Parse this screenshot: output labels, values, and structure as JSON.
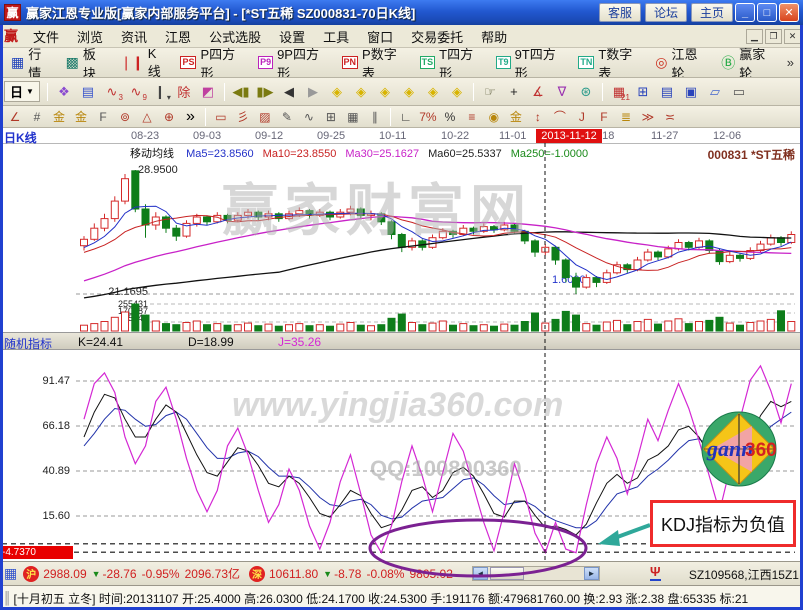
{
  "window": {
    "title": "赢家江恩专业版[赢家内部服务平台] - [*ST五稀  SZ000831-70日K线]",
    "logo_glyph": "赢",
    "buttons": [
      "客服",
      "论坛",
      "主页"
    ],
    "controls": {
      "min": "_",
      "max": "□",
      "close": "✕"
    }
  },
  "menu": {
    "logo_glyph": "赢",
    "items": [
      "文件",
      "浏览",
      "资讯",
      "江恩",
      "公式选股",
      "设置",
      "工具",
      "窗口",
      "交易委托",
      "帮助"
    ],
    "controls": [
      "▁",
      "❐",
      "✕"
    ]
  },
  "toolbar_main": {
    "items": [
      {
        "name": "quotes",
        "label": "行情",
        "glyph": "▦",
        "color": "#2244bb"
      },
      {
        "name": "sectors",
        "label": "板块",
        "glyph": "▩",
        "color": "#1a7a6a"
      },
      {
        "name": "kline",
        "label": "K线",
        "glyph": "❘❙",
        "color": "#cc2222"
      },
      {
        "name": "p-square",
        "label": "P四方形",
        "badge": "PS",
        "color": "#cc2222"
      },
      {
        "name": "9p-square",
        "label": "9P四方形",
        "badge": "P9",
        "color": "#bb22bb"
      },
      {
        "name": "p-table",
        "label": "P数字表",
        "badge": "PN",
        "color": "#cc2222"
      },
      {
        "name": "t-square",
        "label": "T四方形",
        "badge": "TS",
        "color": "#22aa66"
      },
      {
        "name": "9t-square",
        "label": "9T四方形",
        "badge": "T9",
        "color": "#22aa88"
      },
      {
        "name": "t-table",
        "label": "T数字表",
        "badge": "TN",
        "color": "#22aa88"
      },
      {
        "name": "gann-wheel",
        "label": "江恩轮",
        "glyph": "◎",
        "color": "#cc3322"
      },
      {
        "name": "winner-wheel",
        "label": "赢家轮",
        "glyph": "Ⓑ",
        "color": "#22aa44"
      }
    ],
    "overflow": "»"
  },
  "toolbar_tools": {
    "period_label": "日",
    "period_arrow": "▼",
    "icons": [
      {
        "name": "multi-view-icon",
        "glyph": "❖",
        "color": "#8a4ad0"
      },
      {
        "name": "info-list-icon",
        "glyph": "▤",
        "color": "#3a55cc"
      },
      {
        "name": "wave3-icon",
        "glyph": "∿",
        "sub": "3",
        "color": "#c03030"
      },
      {
        "name": "wave9-icon",
        "glyph": "∿",
        "sub": "9",
        "color": "#c03030"
      },
      {
        "name": "candle-style-icon",
        "glyph": "❙",
        "sub": "▾",
        "color": "#444444"
      },
      {
        "name": "exrights-icon",
        "glyph": "除",
        "color": "#c03030"
      },
      {
        "name": "color-style-icon",
        "glyph": "◩",
        "color": "#c040a0"
      },
      {
        "sep": true
      },
      {
        "name": "first-page-icon",
        "glyph": "◀▮",
        "color": "#7a7a10"
      },
      {
        "name": "last-page-icon",
        "glyph": "▮▶",
        "color": "#7a7a10"
      },
      {
        "name": "prev-page-icon",
        "glyph": "◀",
        "color": "#333333"
      },
      {
        "name": "next-page-icon",
        "glyph": "▶",
        "color": "#999999"
      },
      {
        "name": "zoom-left-icon",
        "glyph": "◈",
        "color": "#d8b400"
      },
      {
        "name": "zoom-right-icon",
        "glyph": "◈",
        "color": "#d8b400"
      },
      {
        "name": "zoom-h-icon",
        "glyph": "◈",
        "color": "#d8b400"
      },
      {
        "name": "zoom-star-icon",
        "glyph": "◈",
        "color": "#d8b400"
      },
      {
        "name": "zoom-in-icon",
        "glyph": "◈",
        "color": "#d8b400"
      },
      {
        "name": "zoom-out-icon",
        "glyph": "◈",
        "color": "#d8b400"
      },
      {
        "sep": true
      },
      {
        "name": "hand-tool-icon",
        "glyph": "☞",
        "color": "#555533"
      },
      {
        "name": "crosshair-icon",
        "glyph": "+",
        "color": "#222222"
      },
      {
        "name": "angle-tool-icon",
        "glyph": "∡",
        "color": "#c03030"
      },
      {
        "name": "gann-fan-icon",
        "glyph": "∇",
        "color": "#9a30b0"
      },
      {
        "name": "pattern-icon",
        "glyph": "⊛",
        "color": "#2a9a8a"
      },
      {
        "sep": true
      },
      {
        "name": "calendar-icon",
        "glyph": "▦",
        "sub": "21",
        "color": "#c03030"
      },
      {
        "name": "calculator-icon",
        "glyph": "⊞",
        "color": "#2a44bb"
      },
      {
        "name": "notes-icon",
        "glyph": "▤",
        "color": "#2a44bb"
      },
      {
        "name": "save-icon",
        "glyph": "▣",
        "color": "#2a44bb"
      },
      {
        "name": "capture-icon",
        "glyph": "▱",
        "color": "#4466cc"
      },
      {
        "name": "print-icon",
        "glyph": "▭",
        "color": "#555555"
      }
    ]
  },
  "toolbar_draw": {
    "overflow": "»",
    "groups": [
      [
        {
          "name": "pitchfork-icon",
          "glyph": "∠",
          "color": "#b03828"
        },
        {
          "name": "ruler-grid-icon",
          "glyph": "#",
          "color": "#555555"
        },
        {
          "name": "gold-section-icon",
          "glyph": "金",
          "color": "#b8860b"
        },
        {
          "name": "gold-channel-icon",
          "glyph": "金",
          "color": "#b8860b"
        },
        {
          "name": "fibonacci-icon",
          "glyph": "F",
          "color": "#555555"
        },
        {
          "name": "spiral-icon",
          "glyph": "⊚",
          "color": "#b03828"
        },
        {
          "name": "gann-box-icon",
          "glyph": "△",
          "color": "#b03828"
        },
        {
          "name": "gann-circle-icon",
          "glyph": "⊕",
          "color": "#b03828"
        }
      ],
      [
        {
          "name": "rect-draw-icon",
          "glyph": "▭",
          "color": "#b03828"
        },
        {
          "name": "ray-lines-icon",
          "glyph": "彡",
          "color": "#b03828"
        },
        {
          "name": "shaded-box-icon",
          "glyph": "▨",
          "color": "#b03828"
        },
        {
          "name": "pencil-icon",
          "glyph": "✎",
          "color": "#555555"
        },
        {
          "name": "zigzag-line-icon",
          "glyph": "∿",
          "color": "#555555"
        },
        {
          "name": "grid-fine-icon",
          "glyph": "⊞",
          "color": "#555555"
        },
        {
          "name": "grid-coarse-icon",
          "glyph": "▦",
          "color": "#555555"
        },
        {
          "name": "hatch-lines-icon",
          "glyph": "∥",
          "color": "#555555"
        }
      ],
      [
        {
          "name": "measure-angle-icon",
          "glyph": "∟",
          "color": "#333333"
        },
        {
          "name": "percent7-icon",
          "glyph": "7%",
          "color": "#b03828"
        },
        {
          "name": "percent-icon",
          "glyph": "%",
          "color": "#333333"
        },
        {
          "name": "percent-lines-icon",
          "glyph": "≡",
          "color": "#b03828"
        },
        {
          "name": "gold-circle-icon",
          "glyph": "◉",
          "color": "#b8860b"
        },
        {
          "name": "gold-line-icon",
          "glyph": "金",
          "color": "#b8860b"
        },
        {
          "name": "updown-arrow-icon",
          "glyph": "↕",
          "color": "#b03828"
        },
        {
          "name": "arc-tool-icon",
          "glyph": "⌒",
          "color": "#b03828"
        },
        {
          "name": "j-angle-icon",
          "glyph": "J",
          "color": "#b03828"
        },
        {
          "name": "f-angle-icon",
          "glyph": "F",
          "color": "#b03828"
        },
        {
          "name": "gold-grid-icon",
          "glyph": "≣",
          "color": "#b8860b"
        },
        {
          "name": "advance-icon",
          "glyph": "≫",
          "color": "#b03828"
        },
        {
          "name": "band-tool-icon",
          "glyph": "≍",
          "color": "#b03828"
        }
      ]
    ]
  },
  "chart": {
    "panel_label": "日K线",
    "dates": [
      "08-23",
      "09-03",
      "09-12",
      "09-25",
      "10-11",
      "10-22",
      "11-01",
      "11-18",
      "11-27",
      "12-06"
    ],
    "highlight_date": "2013-11-12",
    "ma_title": "移动均线",
    "ma_items": [
      {
        "label": "Ma5=23.8560",
        "color": "#2230c8"
      },
      {
        "label": "Ma10=23.8550",
        "color": "#c82222"
      },
      {
        "label": "Ma30=25.1627",
        "color": "#c822c8"
      },
      {
        "label": "Ma60=25.5337",
        "color": "#222222"
      },
      {
        "label": "Ma250=-1.0000",
        "color": "#1a8a1a"
      }
    ],
    "stock_label": "000831 *ST五稀",
    "price_high_label": "28.9500",
    "price_low_label": "21.1695",
    "volume_labels": [
      "255431",
      "170287",
      "85144"
    ],
    "price_tag": "1.6000",
    "watermark": {
      "line1": "赢家财富网",
      "line2": "www.yingjia360.com",
      "line3": "QQ:100800360"
    },
    "logo": {
      "word": "gann",
      "num": "360"
    }
  },
  "kdj": {
    "label": "随机指标",
    "k_label": "K=24.41",
    "d_label": "D=18.99",
    "j_label": "J=35.26",
    "scale": [
      "91.47",
      "66.18",
      "40.89",
      "15.60"
    ],
    "badge": "-4.7370",
    "annotation": "KDJ指标为负值"
  },
  "status_market": {
    "sh_icon": "沪",
    "sh_index": "2988.09",
    "sh_change": "-28.76",
    "sh_pct": "-0.95%",
    "sh_amount": "2096.73亿",
    "sz_icon": "深",
    "sz_index": "10611.80",
    "sz_change": "-8.78",
    "sz_pct": "-0.08%",
    "sz_amount": "9805.02",
    "down_arrow": "▼",
    "station": "SZ109568,江西15Z1"
  },
  "status_detail": {
    "text": "[十月初五 立冬] 时间:20131107 开:25.4000 高:26.0300 低:24.1700 收:24.5300 手:191176 额:479681760.00 换:2.93 涨:2.38 盘:65335 标:21"
  },
  "colors": {
    "up": "#d42a2a",
    "down": "#0e7d1a",
    "ma5": "#2230c8",
    "ma10": "#c82222",
    "ma30": "#c822c8",
    "ma60": "#111111",
    "k": "#111111",
    "d": "#2233aa",
    "j": "#d428d4",
    "grid": "#9a9a9a",
    "crosshair": "#111111",
    "ellipse": "#7b2192",
    "arrow": "#2fa89a",
    "annotation_border": "#ef2b2b",
    "highlight_bg": "#e01010",
    "badge_bg": "#e80000"
  },
  "chart_data": {
    "type": "candlestick",
    "title": "*ST五稀 SZ000831 70日K线 with KDJ",
    "price_axis": {
      "high": 28.95,
      "low": 21.1695
    },
    "volume_axis": [
      255431,
      170287,
      85144
    ],
    "kdj_axis": [
      91.47,
      66.18,
      40.89,
      15.6
    ],
    "kdj_zero_levels": [
      0,
      -4.737
    ],
    "candles": [
      [
        24.2,
        24.8,
        23.9,
        24.6
      ],
      [
        24.6,
        25.6,
        24.5,
        25.3
      ],
      [
        25.3,
        26.2,
        25.1,
        25.9
      ],
      [
        25.9,
        27.3,
        25.7,
        27.0
      ],
      [
        27.0,
        28.7,
        26.8,
        28.4
      ],
      [
        28.9,
        28.95,
        26.3,
        26.5
      ],
      [
        26.5,
        26.8,
        24.7,
        25.5
      ],
      [
        25.5,
        26.3,
        25.2,
        26.0
      ],
      [
        26.0,
        26.1,
        25.0,
        25.3
      ],
      [
        25.3,
        25.5,
        24.5,
        24.8
      ],
      [
        24.8,
        25.8,
        24.7,
        25.6
      ],
      [
        25.6,
        26.2,
        25.4,
        26.0
      ],
      [
        26.0,
        26.1,
        25.5,
        25.7
      ],
      [
        25.7,
        26.3,
        25.6,
        26.1
      ],
      [
        26.1,
        26.2,
        25.6,
        25.8
      ],
      [
        25.8,
        26.3,
        25.7,
        26.1
      ],
      [
        26.1,
        26.5,
        25.9,
        26.3
      ],
      [
        26.3,
        26.4,
        25.8,
        26.0
      ],
      [
        26.0,
        26.4,
        25.8,
        26.2
      ],
      [
        26.2,
        26.3,
        25.7,
        25.9
      ],
      [
        25.9,
        26.4,
        25.8,
        26.2
      ],
      [
        26.2,
        26.6,
        26.0,
        26.4
      ],
      [
        26.4,
        26.5,
        25.9,
        26.1
      ],
      [
        26.1,
        26.5,
        26.0,
        26.3
      ],
      [
        26.3,
        26.4,
        25.8,
        26.0
      ],
      [
        26.0,
        26.5,
        25.9,
        26.3
      ],
      [
        26.3,
        26.7,
        26.1,
        26.5
      ],
      [
        26.5,
        26.6,
        25.9,
        26.1
      ],
      [
        26.1,
        26.4,
        25.8,
        26.2
      ],
      [
        26.2,
        26.3,
        25.5,
        25.7
      ],
      [
        25.7,
        25.8,
        24.6,
        24.9
      ],
      [
        24.9,
        25.0,
        23.8,
        24.1
      ],
      [
        24.1,
        24.7,
        23.9,
        24.5
      ],
      [
        24.5,
        24.6,
        23.9,
        24.1
      ],
      [
        24.1,
        24.9,
        24.0,
        24.7
      ],
      [
        24.7,
        25.3,
        24.6,
        25.1
      ],
      [
        25.1,
        25.2,
        24.7,
        24.9
      ],
      [
        24.9,
        25.5,
        24.8,
        25.3
      ],
      [
        25.3,
        25.4,
        24.9,
        25.1
      ],
      [
        25.1,
        25.6,
        25.0,
        25.4
      ],
      [
        25.4,
        25.5,
        25.0,
        25.2
      ],
      [
        25.2,
        25.7,
        25.1,
        25.5
      ],
      [
        25.5,
        25.6,
        24.9,
        25.1
      ],
      [
        25.1,
        25.2,
        24.3,
        24.5
      ],
      [
        24.5,
        24.6,
        23.5,
        23.8
      ],
      [
        23.8,
        24.3,
        23.6,
        24.1
      ],
      [
        24.1,
        24.2,
        23.0,
        23.3
      ],
      [
        23.3,
        23.4,
        21.9,
        22.2
      ],
      [
        22.2,
        22.5,
        21.17,
        21.6
      ],
      [
        21.6,
        22.4,
        21.5,
        22.2
      ],
      [
        22.2,
        22.3,
        21.6,
        21.9
      ],
      [
        21.9,
        22.7,
        21.8,
        22.5
      ],
      [
        22.5,
        23.2,
        22.4,
        23.0
      ],
      [
        23.0,
        23.1,
        22.5,
        22.7
      ],
      [
        22.7,
        23.5,
        22.6,
        23.3
      ],
      [
        23.3,
        24.0,
        23.2,
        23.8
      ],
      [
        23.8,
        23.9,
        23.3,
        23.5
      ],
      [
        23.5,
        24.2,
        23.4,
        24.0
      ],
      [
        24.0,
        24.6,
        23.9,
        24.4
      ],
      [
        24.4,
        24.5,
        23.9,
        24.1
      ],
      [
        24.1,
        24.7,
        24.0,
        24.5
      ],
      [
        24.5,
        24.6,
        23.7,
        23.9
      ],
      [
        23.9,
        24.0,
        23.0,
        23.2
      ],
      [
        23.2,
        23.8,
        23.1,
        23.6
      ],
      [
        23.6,
        23.7,
        23.2,
        23.4
      ],
      [
        23.4,
        24.1,
        23.3,
        23.9
      ],
      [
        23.9,
        24.5,
        23.8,
        24.3
      ],
      [
        24.3,
        24.9,
        24.2,
        24.7
      ],
      [
        24.7,
        24.8,
        24.2,
        24.4
      ],
      [
        24.4,
        25.1,
        24.3,
        24.9
      ]
    ],
    "volumes": [
      55000,
      70000,
      90000,
      130000,
      180000,
      255431,
      150000,
      95000,
      70000,
      60000,
      80000,
      95000,
      60000,
      70000,
      55000,
      60000,
      75000,
      50000,
      65000,
      45000,
      60000,
      70000,
      50000,
      60000,
      45000,
      65000,
      80000,
      55000,
      50000,
      60000,
      120000,
      160000,
      80000,
      60000,
      75000,
      95000,
      55000,
      70000,
      50000,
      60000,
      45000,
      65000,
      55000,
      90000,
      170000,
      75000,
      110000,
      185000,
      150000,
      70000,
      55000,
      85000,
      100000,
      60000,
      90000,
      110000,
      65000,
      95000,
      115000,
      70000,
      90000,
      100000,
      130000,
      75000,
      55000,
      80000,
      95000,
      110000,
      191176,
      90000
    ],
    "kdj_j": [
      70,
      90,
      96,
      85,
      60,
      45,
      55,
      80,
      88,
      70,
      48,
      30,
      18,
      30,
      55,
      65,
      50,
      30,
      12,
      22,
      42,
      30,
      10,
      -3,
      12,
      35,
      50,
      28,
      5,
      -5,
      10,
      35,
      55,
      38,
      18,
      40,
      62,
      52,
      32,
      12,
      -4,
      18,
      45,
      28,
      6,
      -5,
      12,
      -3,
      -5,
      22,
      45,
      60,
      48,
      28,
      48,
      70,
      58,
      75,
      90,
      76,
      58,
      38,
      18,
      42,
      70,
      92,
      100,
      86,
      68,
      90
    ],
    "kdj_k": [
      60,
      74,
      84,
      82,
      70,
      60,
      60,
      70,
      78,
      74,
      62,
      50,
      40,
      38,
      46,
      54,
      52,
      44,
      34,
      32,
      38,
      34,
      26,
      17,
      15,
      22,
      30,
      27,
      17,
      9,
      11,
      19,
      30,
      32,
      26,
      30,
      40,
      43,
      38,
      28,
      17,
      15,
      24,
      24,
      16,
      9,
      10,
      8,
      5,
      11,
      23,
      34,
      39,
      34,
      37,
      47,
      50,
      55,
      64,
      66,
      60,
      50,
      38,
      37,
      45,
      58,
      72,
      80,
      77,
      80
    ],
    "kdj_d": [
      55,
      62,
      70,
      76,
      75,
      70,
      66,
      67,
      72,
      74,
      70,
      62,
      54,
      48,
      48,
      51,
      52,
      49,
      43,
      38,
      38,
      37,
      32,
      26,
      22,
      21,
      24,
      25,
      22,
      16,
      14,
      15,
      20,
      24,
      25,
      26,
      31,
      36,
      37,
      33,
      27,
      22,
      23,
      24,
      21,
      16,
      13,
      11,
      9,
      9,
      13,
      21,
      28,
      30,
      32,
      38,
      42,
      47,
      53,
      58,
      59,
      55,
      48,
      43,
      43,
      49,
      58,
      66,
      70,
      74
    ],
    "ma_prehistory": [
      17.0,
      17.2,
      17.4,
      17.6,
      17.8,
      18.0,
      18.2,
      18.4,
      18.6,
      18.8,
      19.0,
      19.2,
      19.4,
      19.6,
      19.8,
      20.0,
      20.2,
      20.4,
      20.6,
      20.8,
      21.0,
      21.2,
      21.4,
      21.6,
      21.8,
      22.0,
      22.2,
      22.4,
      22.6,
      22.8,
      23.0,
      23.2,
      23.4,
      23.5,
      23.6,
      23.7,
      23.8,
      23.9,
      24.0,
      24.1
    ]
  }
}
